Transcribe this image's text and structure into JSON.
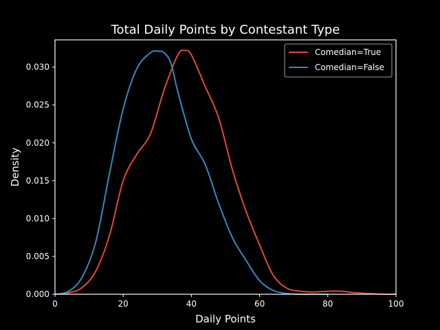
{
  "chart_data": {
    "type": "line",
    "title": "Total Daily Points by Contestant Type",
    "xlabel": "Daily Points",
    "ylabel": "Density",
    "xlim": [
      0,
      100
    ],
    "ylim": [
      0,
      0.0336
    ],
    "xticks": [
      0,
      20,
      40,
      60,
      80,
      100
    ],
    "xtick_labels": [
      "0",
      "20",
      "40",
      "60",
      "80",
      "100"
    ],
    "yticks": [
      0,
      0.005,
      0.01,
      0.015,
      0.02,
      0.025,
      0.03
    ],
    "ytick_labels": [
      "0.000",
      "0.005",
      "0.010",
      "0.015",
      "0.020",
      "0.025",
      "0.030"
    ],
    "grid": false,
    "legend_position": "top-right",
    "series": [
      {
        "name": "Comedian=True",
        "color": "#e24a33",
        "x": [
          0,
          4,
          8,
          12,
          16,
          20,
          24,
          28,
          32,
          36,
          38,
          40,
          44,
          48,
          52,
          56,
          60,
          64,
          68,
          72,
          76,
          80,
          84,
          88,
          92,
          96,
          100
        ],
        "y": [
          0.0,
          0.0002,
          0.0009,
          0.0031,
          0.0078,
          0.015,
          0.0185,
          0.0212,
          0.027,
          0.0316,
          0.0322,
          0.0316,
          0.0275,
          0.0233,
          0.0165,
          0.011,
          0.0065,
          0.0025,
          0.0008,
          0.0004,
          0.0003,
          0.0004,
          0.0004,
          0.0002,
          0.0001,
          0.0,
          0.0
        ]
      },
      {
        "name": "Comedian=False",
        "color": "#348abd",
        "x": [
          0,
          4,
          8,
          12,
          16,
          20,
          24,
          28,
          30,
          32,
          34,
          36,
          40,
          44,
          48,
          52,
          56,
          60,
          64,
          68,
          72,
          76,
          80
        ],
        "y": [
          0.0,
          0.0004,
          0.0023,
          0.007,
          0.016,
          0.0245,
          0.0298,
          0.0319,
          0.0321,
          0.0319,
          0.0305,
          0.0268,
          0.0205,
          0.0172,
          0.012,
          0.0075,
          0.0045,
          0.0018,
          0.0005,
          0.0001,
          0.0,
          0.0,
          0.0
        ]
      }
    ]
  }
}
